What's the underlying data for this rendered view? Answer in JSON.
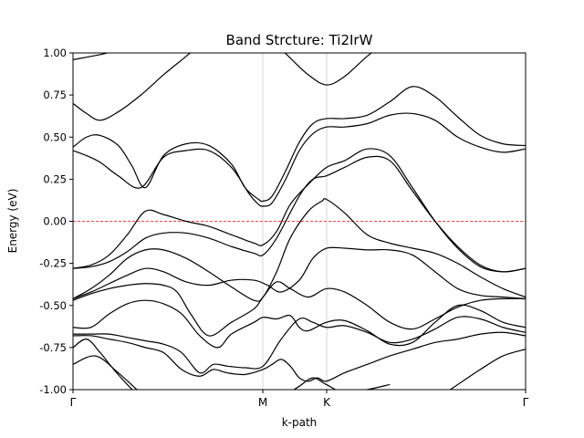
{
  "chart_data": {
    "type": "line",
    "title": "Band Strcture: Ti2IrW",
    "xlabel": "k-path",
    "ylabel": "Energy (eV)",
    "ylim": [
      -1.0,
      1.0
    ],
    "xlim": [
      0,
      1
    ],
    "xticks": [
      {
        "label": "Γ",
        "x": 0.0
      },
      {
        "label": "M",
        "x": 0.4194
      },
      {
        "label": "K",
        "x": 0.5605
      },
      {
        "label": "Γ",
        "x": 1.0
      }
    ],
    "yticks": [
      "-1.00",
      "-0.75",
      "-0.50",
      "-0.25",
      "0.00",
      "0.25",
      "0.50",
      "0.75",
      "1.00"
    ],
    "ytick_values": [
      -1.0,
      -0.75,
      -0.5,
      -0.25,
      0.0,
      0.25,
      0.5,
      0.75,
      1.0
    ],
    "fermi_level": 0.0,
    "fermi_color": "#ff0000",
    "line_color": "#000000",
    "vlines_color": "#cccccc",
    "grid": false,
    "series": [
      {
        "x": [
          0.0,
          0.06,
          0.12,
          0.2,
          0.26
        ],
        "y": [
          0.96,
          0.99,
          1.03,
          1.08,
          1.12
        ]
      },
      {
        "x": [
          0.0,
          0.03,
          0.06,
          0.1,
          0.15,
          0.2,
          0.25,
          0.28
        ],
        "y": [
          0.7,
          0.64,
          0.6,
          0.65,
          0.75,
          0.87,
          0.98,
          1.05
        ]
      },
      {
        "x": [
          0.0,
          0.03,
          0.06,
          0.1,
          0.13,
          0.16,
          0.2,
          0.25,
          0.3,
          0.35,
          0.38,
          0.41,
          0.42,
          0.44,
          0.47,
          0.5,
          0.53,
          0.56,
          0.6,
          0.65,
          0.7,
          0.75,
          0.8,
          0.85,
          0.9,
          0.95,
          1.0
        ],
        "y": [
          0.44,
          0.5,
          0.51,
          0.45,
          0.33,
          0.2,
          0.39,
          0.46,
          0.45,
          0.34,
          0.2,
          0.13,
          0.12,
          0.15,
          0.3,
          0.47,
          0.58,
          0.61,
          0.61,
          0.63,
          0.71,
          0.8,
          0.74,
          0.62,
          0.51,
          0.46,
          0.45
        ]
      },
      {
        "x": [
          0.0,
          0.03,
          0.06,
          0.1,
          0.15,
          0.2,
          0.25,
          0.3,
          0.35,
          0.39,
          0.41,
          0.42,
          0.44,
          0.47,
          0.5,
          0.53,
          0.56,
          0.6,
          0.65,
          0.7,
          0.75,
          0.8,
          0.85,
          0.9,
          0.95,
          1.0
        ],
        "y": [
          0.42,
          0.39,
          0.35,
          0.27,
          0.2,
          0.38,
          0.42,
          0.42,
          0.32,
          0.16,
          0.1,
          0.09,
          0.11,
          0.25,
          0.42,
          0.52,
          0.56,
          0.56,
          0.58,
          0.63,
          0.64,
          0.6,
          0.5,
          0.44,
          0.41,
          0.43
        ]
      },
      {
        "x": [
          0.45,
          0.48,
          0.52,
          0.56,
          0.6,
          0.65,
          0.7,
          0.75,
          0.8,
          0.85,
          0.9,
          0.95,
          1.0
        ],
        "y": [
          1.05,
          0.97,
          0.87,
          0.81,
          0.86,
          0.98,
          1.08,
          1.12,
          1.15,
          1.12,
          1.07,
          1.02,
          1.0
        ]
      },
      {
        "x": [
          0.0,
          0.04,
          0.08,
          0.12,
          0.16,
          0.2,
          0.25,
          0.3,
          0.35,
          0.4,
          0.42,
          0.45,
          0.48,
          0.52,
          0.56,
          0.6,
          0.65,
          0.7,
          0.75,
          0.8,
          0.85,
          0.9,
          0.95,
          1.0
        ],
        "y": [
          -0.28,
          -0.26,
          -0.2,
          -0.08,
          0.06,
          0.04,
          0.0,
          -0.03,
          -0.08,
          -0.13,
          -0.14,
          -0.06,
          0.1,
          0.22,
          0.32,
          0.36,
          0.43,
          0.39,
          0.2,
          0.0,
          -0.16,
          -0.27,
          -0.3,
          -0.28
        ]
      },
      {
        "x": [
          0.0,
          0.04,
          0.08,
          0.12,
          0.16,
          0.2,
          0.25,
          0.3,
          0.35,
          0.4,
          0.42,
          0.45,
          0.5,
          0.53,
          0.56,
          0.6,
          0.65,
          0.7,
          0.75,
          0.8,
          0.85,
          0.9,
          0.95,
          1.0
        ],
        "y": [
          -0.28,
          -0.27,
          -0.24,
          -0.18,
          -0.1,
          -0.07,
          -0.07,
          -0.1,
          -0.15,
          -0.19,
          -0.2,
          -0.1,
          0.15,
          0.25,
          0.27,
          0.32,
          0.38,
          0.36,
          0.18,
          0.0,
          -0.15,
          -0.26,
          -0.3,
          -0.28
        ]
      },
      {
        "x": [
          0.0,
          0.04,
          0.08,
          0.12,
          0.16,
          0.2,
          0.25,
          0.3,
          0.35,
          0.4,
          0.42,
          0.45,
          0.48,
          0.52,
          0.55,
          0.56,
          0.6,
          0.65,
          0.7,
          0.75,
          0.8,
          0.85,
          0.9,
          0.95,
          1.0
        ],
        "y": [
          -0.46,
          -0.4,
          -0.32,
          -0.22,
          -0.17,
          -0.17,
          -0.22,
          -0.3,
          -0.39,
          -0.47,
          -0.45,
          -0.3,
          -0.1,
          0.06,
          0.12,
          0.13,
          0.05,
          -0.08,
          -0.13,
          -0.16,
          -0.19,
          -0.25,
          -0.33,
          -0.4,
          -0.45
        ]
      },
      {
        "x": [
          0.0,
          0.04,
          0.08,
          0.12,
          0.16,
          0.2,
          0.25,
          0.3,
          0.35,
          0.4,
          0.43,
          0.46,
          0.5,
          0.53,
          0.56,
          0.6,
          0.65,
          0.7,
          0.75,
          0.8,
          0.85,
          0.9,
          0.95,
          1.0
        ],
        "y": [
          -0.46,
          -0.42,
          -0.37,
          -0.32,
          -0.28,
          -0.3,
          -0.36,
          -0.38,
          -0.35,
          -0.35,
          -0.38,
          -0.42,
          -0.35,
          -0.22,
          -0.16,
          -0.16,
          -0.17,
          -0.17,
          -0.2,
          -0.3,
          -0.4,
          -0.44,
          -0.45,
          -0.46
        ]
      },
      {
        "x": [
          0.0,
          0.04,
          0.08,
          0.12,
          0.16,
          0.2,
          0.23,
          0.26,
          0.3,
          0.35,
          0.4,
          0.42,
          0.45,
          0.48,
          0.52,
          0.56,
          0.6,
          0.65,
          0.7,
          0.75,
          0.8,
          0.85,
          0.9,
          0.95,
          1.0
        ],
        "y": [
          -0.47,
          -0.43,
          -0.4,
          -0.38,
          -0.37,
          -0.38,
          -0.42,
          -0.55,
          -0.68,
          -0.6,
          -0.52,
          -0.45,
          -0.36,
          -0.4,
          -0.45,
          -0.4,
          -0.42,
          -0.5,
          -0.6,
          -0.64,
          -0.58,
          -0.51,
          -0.47,
          -0.46,
          -0.46
        ]
      },
      {
        "x": [
          0.0,
          0.04,
          0.08,
          0.12,
          0.16,
          0.2,
          0.24,
          0.28,
          0.32,
          0.35,
          0.4,
          0.42,
          0.45,
          0.48,
          0.5,
          0.52,
          0.56,
          0.6,
          0.65,
          0.7,
          0.75,
          0.8,
          0.85,
          0.9,
          0.95,
          1.0
        ],
        "y": [
          -0.63,
          -0.63,
          -0.55,
          -0.49,
          -0.47,
          -0.49,
          -0.55,
          -0.68,
          -0.75,
          -0.67,
          -0.6,
          -0.57,
          -0.58,
          -0.56,
          -0.63,
          -0.65,
          -0.6,
          -0.59,
          -0.65,
          -0.73,
          -0.72,
          -0.6,
          -0.5,
          -0.53,
          -0.6,
          -0.63
        ]
      },
      {
        "x": [
          0.0,
          0.04,
          0.08,
          0.12,
          0.16,
          0.2,
          0.24,
          0.28,
          0.31,
          0.34,
          0.38,
          0.42,
          0.46,
          0.5,
          0.53,
          0.56,
          0.6,
          0.65,
          0.7,
          0.75,
          0.8,
          0.85,
          0.9,
          0.95,
          1.0
        ],
        "y": [
          -0.67,
          -0.67,
          -0.67,
          -0.69,
          -0.71,
          -0.73,
          -0.78,
          -0.9,
          -0.85,
          -0.86,
          -0.87,
          -0.86,
          -0.7,
          -0.58,
          -0.6,
          -0.63,
          -0.62,
          -0.66,
          -0.72,
          -0.7,
          -0.64,
          -0.57,
          -0.58,
          -0.63,
          -0.66
        ]
      },
      {
        "x": [
          0.0,
          0.04,
          0.08,
          0.12,
          0.16,
          0.2,
          0.24,
          0.28,
          0.31,
          0.34,
          0.38,
          0.42,
          0.44,
          0.46,
          0.48,
          0.5,
          0.52,
          0.54,
          0.56,
          0.6,
          0.65,
          0.7,
          0.75,
          0.8,
          0.85,
          0.9,
          0.95,
          1.0
        ],
        "y": [
          -0.68,
          -0.68,
          -0.7,
          -0.72,
          -0.75,
          -0.78,
          -0.88,
          -0.92,
          -0.88,
          -0.9,
          -0.91,
          -0.88,
          -0.85,
          -0.82,
          -0.86,
          -0.93,
          -0.95,
          -0.93,
          -0.95,
          -0.9,
          -0.85,
          -0.8,
          -0.76,
          -0.72,
          -0.7,
          -0.67,
          -0.66,
          -0.68
        ]
      },
      {
        "x": [
          0.0,
          0.03,
          0.06,
          0.09,
          0.12,
          0.15
        ],
        "y": [
          -0.75,
          -0.7,
          -0.78,
          -0.88,
          -0.97,
          -1.05
        ]
      },
      {
        "x": [
          0.0,
          0.05,
          0.1,
          0.15,
          0.2
        ],
        "y": [
          -0.85,
          -0.8,
          -0.9,
          -1.02,
          -1.12
        ]
      },
      {
        "x": [
          0.46,
          0.5,
          0.53,
          0.56,
          0.6,
          0.65,
          0.7
        ],
        "y": [
          -1.05,
          -0.98,
          -0.93,
          -0.97,
          -1.02,
          -1.0,
          -0.97
        ]
      },
      {
        "x": [
          0.8,
          0.85,
          0.9,
          0.95,
          1.0
        ],
        "y": [
          -1.06,
          -0.97,
          -0.88,
          -0.8,
          -0.76
        ]
      }
    ]
  }
}
